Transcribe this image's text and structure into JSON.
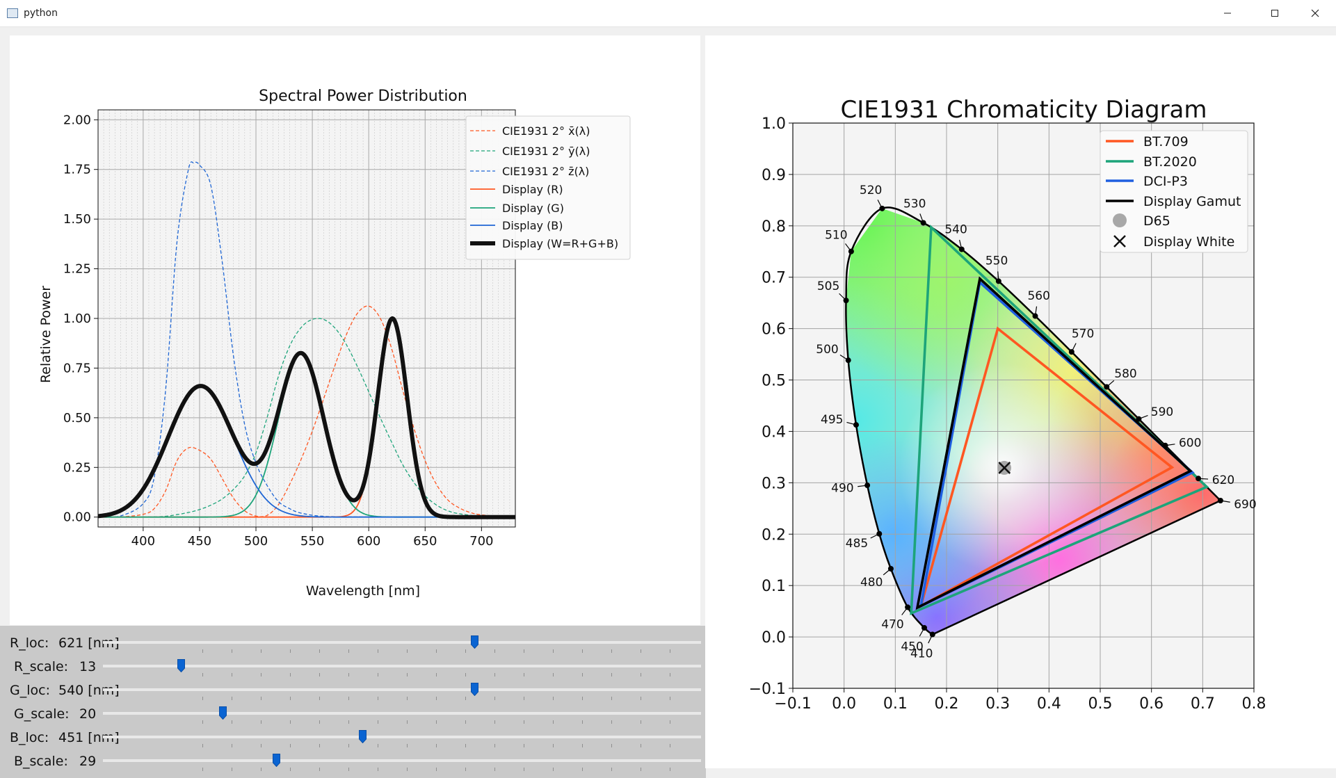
{
  "window": {
    "title": "python"
  },
  "spd_chart": {
    "chart_data": {
      "type": "line",
      "title": "Spectral Power Distribution",
      "xlabel": "Wavelength [nm]",
      "ylabel": "Relative Power",
      "xlim": [
        360,
        730
      ],
      "ylim": [
        -0.05,
        2.05
      ],
      "xticks": [
        "400",
        "450",
        "500",
        "550",
        "600",
        "650",
        "700"
      ],
      "yticks": [
        "0.00",
        "0.25",
        "0.50",
        "0.75",
        "1.00",
        "1.25",
        "1.50",
        "1.75",
        "2.00"
      ],
      "grid": true,
      "legend_position": "upper-right",
      "legend": [
        "CIE1931 2° x̄(λ)",
        "CIE1931 2° ȳ(λ)",
        "CIE1931 2° z̄(λ)",
        "Display (R)",
        "Display (G)",
        "Display (B)",
        "Display (W=R+G+B)"
      ],
      "series": [
        {
          "name": "x_bar",
          "style": "dashed",
          "color": "#ff5722",
          "x": [
            360,
            380,
            400,
            410,
            420,
            430,
            440,
            450,
            460,
            470,
            480,
            490,
            500,
            510,
            520,
            530,
            540,
            550,
            560,
            570,
            580,
            590,
            600,
            610,
            620,
            630,
            640,
            650,
            660,
            670,
            680,
            690,
            700,
            720,
            730
          ],
          "y": [
            0,
            0.001,
            0.014,
            0.044,
            0.134,
            0.284,
            0.348,
            0.336,
            0.291,
            0.195,
            0.096,
            0.032,
            0.005,
            0.009,
            0.063,
            0.166,
            0.29,
            0.433,
            0.595,
            0.762,
            0.916,
            1.026,
            1.062,
            1.003,
            0.854,
            0.642,
            0.448,
            0.284,
            0.165,
            0.087,
            0.047,
            0.023,
            0.011,
            0.003,
            0.001
          ]
        },
        {
          "name": "y_bar",
          "style": "dashed",
          "color": "#1da47a",
          "x": [
            360,
            380,
            400,
            420,
            440,
            450,
            460,
            470,
            480,
            490,
            500,
            510,
            520,
            530,
            540,
            550,
            560,
            570,
            580,
            590,
            600,
            610,
            620,
            630,
            640,
            650,
            660,
            670,
            680,
            700,
            730
          ],
          "y": [
            0,
            0,
            0.0004,
            0.004,
            0.023,
            0.038,
            0.06,
            0.091,
            0.139,
            0.208,
            0.323,
            0.503,
            0.71,
            0.862,
            0.954,
            0.995,
            0.995,
            0.952,
            0.87,
            0.757,
            0.631,
            0.503,
            0.381,
            0.265,
            0.175,
            0.107,
            0.061,
            0.032,
            0.017,
            0.004,
            0.001
          ]
        },
        {
          "name": "z_bar",
          "style": "dashed",
          "color": "#1f66d4",
          "x": [
            360,
            380,
            400,
            410,
            420,
            430,
            440,
            445,
            450,
            460,
            470,
            480,
            490,
            500,
            510,
            520,
            530,
            540,
            560,
            600,
            730
          ],
          "y": [
            0,
            0.006,
            0.068,
            0.207,
            0.646,
            1.386,
            1.747,
            1.783,
            1.772,
            1.669,
            1.288,
            0.813,
            0.465,
            0.272,
            0.158,
            0.078,
            0.042,
            0.02,
            0.004,
            0.001,
            0
          ]
        },
        {
          "name": "Display (R)",
          "style": "solid",
          "color": "#ff5722",
          "peak": 621,
          "sigma": 13,
          "amplitude": 1.0
        },
        {
          "name": "Display (G)",
          "style": "solid",
          "color": "#1da47a",
          "peak": 540,
          "sigma": 20,
          "amplitude": 0.82
        },
        {
          "name": "Display (B)",
          "style": "solid",
          "color": "#1f66d4",
          "peak": 451,
          "sigma": 29,
          "amplitude": 0.66
        },
        {
          "name": "Display (W=R+G+B)",
          "style": "solid-bold",
          "color": "#111111",
          "sum_of": [
            "Display (R)",
            "Display (G)",
            "Display (B)"
          ]
        }
      ]
    }
  },
  "sliders": [
    {
      "label": "R_loc:",
      "value": "621 [nm]",
      "min": 360,
      "max": 780,
      "current": 621
    },
    {
      "label": "R_scale:",
      "value": "13",
      "min": 0,
      "max": 100,
      "current": 13
    },
    {
      "label": "G_loc:",
      "value": "540 [nm]",
      "min": 360,
      "max": 650,
      "current": 540
    },
    {
      "label": "G_scale:",
      "value": "20",
      "min": 0,
      "max": 100,
      "current": 20
    },
    {
      "label": "B_loc:",
      "value": "451 [nm]",
      "min": 360,
      "max": 570,
      "current": 451
    },
    {
      "label": "B_scale:",
      "value": "29",
      "min": 0,
      "max": 100,
      "current": 29
    }
  ],
  "cie_chart": {
    "chart_data": {
      "type": "scatter",
      "title": "CIE1931 Chromaticity Diagram",
      "xlim": [
        -0.1,
        0.8
      ],
      "ylim": [
        -0.1,
        1.0
      ],
      "xticks": [
        "−0.1",
        "0.0",
        "0.1",
        "0.2",
        "0.3",
        "0.4",
        "0.5",
        "0.6",
        "0.7",
        "0.8"
      ],
      "yticks": [
        "−0.1",
        "0.0",
        "0.1",
        "0.2",
        "0.3",
        "0.4",
        "0.5",
        "0.6",
        "0.7",
        "0.8",
        "0.9",
        "1.0"
      ],
      "grid": true,
      "legend_position": "upper-right",
      "legend": [
        "BT.709",
        "BT.2020",
        "DCI-P3",
        "Display Gamut",
        "D65",
        "Display White"
      ],
      "spectral_locus": [
        {
          "nm": "410",
          "x": 0.1726,
          "y": 0.0048
        },
        {
          "nm": "450",
          "x": 0.1566,
          "y": 0.0177
        },
        {
          "nm": "470",
          "x": 0.1241,
          "y": 0.0578
        },
        {
          "nm": "480",
          "x": 0.0913,
          "y": 0.1327
        },
        {
          "nm": "485",
          "x": 0.0687,
          "y": 0.2007
        },
        {
          "nm": "490",
          "x": 0.0454,
          "y": 0.295
        },
        {
          "nm": "495",
          "x": 0.0235,
          "y": 0.4127
        },
        {
          "nm": "500",
          "x": 0.0082,
          "y": 0.5384
        },
        {
          "nm": "505",
          "x": 0.0039,
          "y": 0.6548
        },
        {
          "nm": "510",
          "x": 0.0139,
          "y": 0.7502
        },
        {
          "nm": "520",
          "x": 0.0743,
          "y": 0.8338
        },
        {
          "nm": "530",
          "x": 0.1547,
          "y": 0.8059
        },
        {
          "nm": "540",
          "x": 0.2296,
          "y": 0.7543
        },
        {
          "nm": "550",
          "x": 0.3016,
          "y": 0.6923
        },
        {
          "nm": "560",
          "x": 0.3731,
          "y": 0.6245
        },
        {
          "nm": "570",
          "x": 0.4441,
          "y": 0.5547
        },
        {
          "nm": "580",
          "x": 0.5125,
          "y": 0.4866
        },
        {
          "nm": "590",
          "x": 0.5752,
          "y": 0.4242
        },
        {
          "nm": "600",
          "x": 0.627,
          "y": 0.3725
        },
        {
          "nm": "620",
          "x": 0.6915,
          "y": 0.3083
        },
        {
          "nm": "690",
          "x": 0.7347,
          "y": 0.2653
        }
      ],
      "gamuts": [
        {
          "name": "BT.709",
          "color": "#ff5722",
          "points": [
            [
              0.64,
              0.33
            ],
            [
              0.3,
              0.6
            ],
            [
              0.15,
              0.06
            ]
          ]
        },
        {
          "name": "BT.2020",
          "color": "#1da47a",
          "points": [
            [
              0.708,
              0.292
            ],
            [
              0.17,
              0.797
            ],
            [
              0.131,
              0.046
            ]
          ]
        },
        {
          "name": "DCI-P3",
          "color": "#1f5fe0",
          "points": [
            [
              0.68,
              0.32
            ],
            [
              0.265,
              0.69
            ],
            [
              0.15,
              0.06
            ]
          ]
        },
        {
          "name": "Display Gamut",
          "color": "#000000",
          "points": [
            [
              0.676,
              0.323
            ],
            [
              0.265,
              0.697
            ],
            [
              0.143,
              0.057
            ]
          ]
        }
      ],
      "points": [
        {
          "name": "D65",
          "x": 0.3127,
          "y": 0.329
        },
        {
          "name": "Display White",
          "x": 0.313,
          "y": 0.329
        }
      ]
    }
  }
}
